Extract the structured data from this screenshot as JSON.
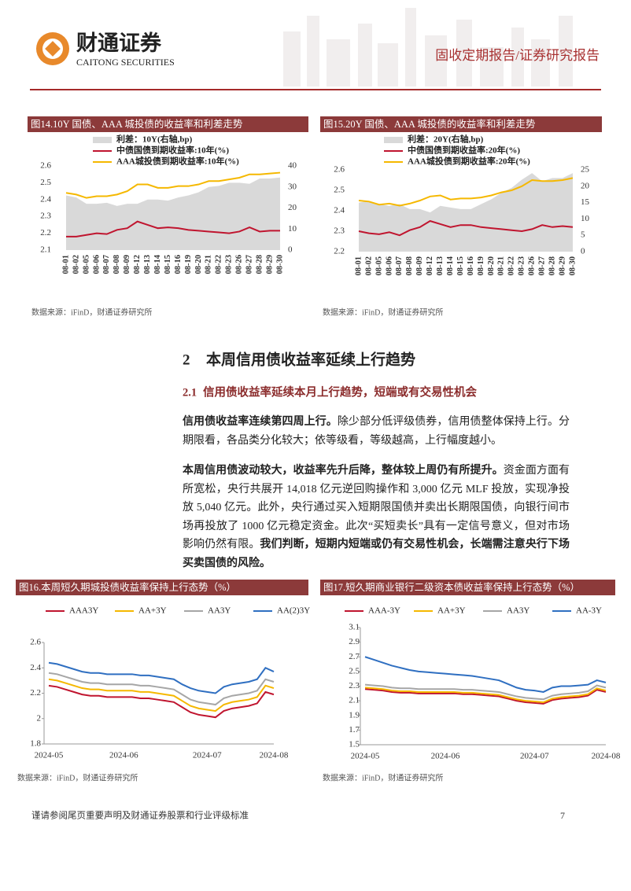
{
  "header": {
    "logo_cn": "财通证券",
    "logo_en": "CAITONG SECURITIES",
    "report_type": "固收定期报告/证券研究报告"
  },
  "section": {
    "number": "2",
    "title": "本周信用债收益率延续上行趋势"
  },
  "subsection": {
    "number": "2.1",
    "title": "信用债收益率延续本月上行趋势，短端或有交易性机会"
  },
  "paragraphs": [
    {
      "bold": "信用债收益率连续第四周上行。",
      "text": "除少部分低评级债券，信用债整体保持上行。分期限看，各品类分化较大；依等级看，等级越高，上行幅度越小。"
    },
    {
      "bold": "本周信用债波动较大，收益率先升后降，整体较上周仍有所提升。",
      "text": "资金面方面有所宽松，央行共展开 14,018 亿元逆回购操作和 3,000 亿元 MLF 投放，实现净投放 5,040 亿元。此外，央行通过买入短期限国债并卖出长期限国债，向银行间市场再投放了 1000 亿元稳定资金。此次“买短卖长”具有一定信号意义，但对市场影响仍然有限。",
      "bold_end": "我们判断，短期内短端或仍有交易性机会，长端需注意央行下场买卖国债的风险。"
    }
  ],
  "footer": {
    "disclaimer": "谨请参阅尾页重要声明及财通证券股票和行业评级标准",
    "page": "7"
  },
  "chart_data": [
    {
      "type": "line",
      "title": "图14.10Y 国债、AAA 城投债的收益率和利差走势",
      "source": "数据来源：iFinD，财通证券研究所",
      "categories": [
        "08-01",
        "08-02",
        "08-05",
        "08-06",
        "08-07",
        "08-08",
        "08-09",
        "08-12",
        "08-13",
        "08-14",
        "08-15",
        "08-16",
        "08-19",
        "08-20",
        "08-21",
        "08-22",
        "08-23",
        "08-26",
        "08-27",
        "08-28",
        "08-29",
        "08-30"
      ],
      "ylim": [
        2.1,
        2.6
      ],
      "yticks": [
        2.1,
        2.2,
        2.3,
        2.4,
        2.5,
        2.6
      ],
      "y2lim": [
        0,
        40
      ],
      "y2ticks": [
        0,
        10,
        20,
        30,
        40
      ],
      "series": [
        {
          "name": "利差：10Y(右轴,bp)",
          "type": "area",
          "axis": "y2",
          "color": "#d9d9d9",
          "values": [
            26,
            25,
            22,
            22,
            22.5,
            21,
            22,
            22,
            24,
            24,
            23.5,
            25,
            26,
            27.5,
            30,
            30.5,
            32,
            32,
            31.5,
            34,
            34,
            34.5
          ]
        },
        {
          "name": "中债国债到期收益率:10年(%)",
          "color": "#c0152f",
          "values": [
            2.18,
            2.18,
            2.19,
            2.2,
            2.195,
            2.22,
            2.23,
            2.27,
            2.25,
            2.23,
            2.235,
            2.23,
            2.22,
            2.215,
            2.21,
            2.205,
            2.2,
            2.21,
            2.235,
            2.21,
            2.215,
            2.215
          ]
        },
        {
          "name": "AAA城投债到期收益率:10年(%)",
          "color": "#f5b800",
          "values": [
            2.44,
            2.43,
            2.41,
            2.42,
            2.42,
            2.43,
            2.45,
            2.49,
            2.49,
            2.47,
            2.47,
            2.48,
            2.48,
            2.49,
            2.51,
            2.51,
            2.52,
            2.53,
            2.55,
            2.55,
            2.555,
            2.56
          ]
        }
      ]
    },
    {
      "type": "line",
      "title": "图15.20Y 国债、AAA 城投债的收益率和利差走势",
      "source": "数据来源：iFinD，财通证券研究所",
      "categories": [
        "08-01",
        "08-02",
        "08-05",
        "08-06",
        "08-07",
        "08-08",
        "08-09",
        "08-12",
        "08-13",
        "08-14",
        "08-15",
        "08-16",
        "08-19",
        "08-20",
        "08-21",
        "08-22",
        "08-23",
        "08-26",
        "08-27",
        "08-28",
        "08-29",
        "08-30"
      ],
      "ylim": [
        2.2,
        2.6
      ],
      "yticks": [
        2.2,
        2.3,
        2.4,
        2.5,
        2.6
      ],
      "y2lim": [
        0,
        25
      ],
      "y2ticks": [
        0,
        5,
        10,
        15,
        20,
        25
      ],
      "series": [
        {
          "name": "利差：20Y(右轴,bp)",
          "type": "area",
          "axis": "y2",
          "color": "#d9d9d9",
          "values": [
            15,
            15.5,
            14.5,
            14,
            14.5,
            13,
            13,
            12,
            14,
            13.5,
            13,
            13,
            14.5,
            16,
            18,
            19.5,
            22,
            24,
            21.5,
            22.5,
            22.5,
            24
          ]
        },
        {
          "name": "中债国债到期收益率:20年(%)",
          "color": "#c0152f",
          "values": [
            2.3,
            2.29,
            2.285,
            2.295,
            2.28,
            2.305,
            2.32,
            2.35,
            2.335,
            2.32,
            2.33,
            2.33,
            2.32,
            2.315,
            2.31,
            2.305,
            2.3,
            2.31,
            2.33,
            2.32,
            2.325,
            2.32
          ]
        },
        {
          "name": "AAA城投债到期收益率:20年(%)",
          "color": "#f5b800",
          "values": [
            2.45,
            2.445,
            2.43,
            2.435,
            2.425,
            2.435,
            2.45,
            2.47,
            2.475,
            2.455,
            2.46,
            2.46,
            2.465,
            2.475,
            2.49,
            2.5,
            2.52,
            2.55,
            2.545,
            2.545,
            2.55,
            2.56
          ]
        }
      ]
    },
    {
      "type": "line",
      "title": "图16.本周短久期城投债收益率保持上行态势（%）",
      "source": "数据来源：iFinD，财通证券研究所",
      "categories": [
        "2024-05",
        null,
        null,
        null,
        null,
        null,
        null,
        null,
        null,
        "2024-06",
        null,
        null,
        null,
        null,
        null,
        null,
        null,
        null,
        null,
        "2024-07",
        null,
        null,
        null,
        null,
        null,
        null,
        null,
        "2024-08"
      ],
      "ylim": [
        1.8,
        2.6
      ],
      "yticks": [
        1.8,
        2,
        2.2,
        2.4,
        2.6
      ],
      "axes": true,
      "series": [
        {
          "name": "AAA3Y",
          "color": "#c0152f",
          "values": [
            2.26,
            2.25,
            2.23,
            2.21,
            2.19,
            2.18,
            2.18,
            2.17,
            2.17,
            2.17,
            2.17,
            2.16,
            2.16,
            2.15,
            2.14,
            2.13,
            2.09,
            2.05,
            2.03,
            2.02,
            2.01,
            2.06,
            2.08,
            2.09,
            2.1,
            2.12,
            2.21,
            2.19
          ]
        },
        {
          "name": "AA+3Y",
          "color": "#f5b800",
          "values": [
            2.31,
            2.3,
            2.28,
            2.26,
            2.24,
            2.23,
            2.23,
            2.22,
            2.22,
            2.22,
            2.22,
            2.21,
            2.21,
            2.2,
            2.19,
            2.18,
            2.14,
            2.1,
            2.08,
            2.07,
            2.06,
            2.11,
            2.13,
            2.14,
            2.15,
            2.17,
            2.26,
            2.24
          ]
        },
        {
          "name": "AA3Y",
          "color": "#a6a6a6",
          "values": [
            2.36,
            2.35,
            2.33,
            2.31,
            2.29,
            2.28,
            2.28,
            2.27,
            2.27,
            2.27,
            2.27,
            2.26,
            2.26,
            2.25,
            2.24,
            2.23,
            2.19,
            2.15,
            2.13,
            2.12,
            2.11,
            2.16,
            2.18,
            2.19,
            2.2,
            2.22,
            2.31,
            2.29
          ]
        },
        {
          "name": "AA(2)3Y",
          "color": "#2f6fc1",
          "values": [
            2.44,
            2.43,
            2.41,
            2.39,
            2.37,
            2.36,
            2.36,
            2.35,
            2.35,
            2.35,
            2.35,
            2.34,
            2.34,
            2.33,
            2.32,
            2.31,
            2.27,
            2.24,
            2.22,
            2.21,
            2.2,
            2.25,
            2.27,
            2.28,
            2.29,
            2.31,
            2.4,
            2.37
          ]
        }
      ]
    },
    {
      "type": "line",
      "title": "图17.短久期商业银行二级资本债收益率保持上行态势（%）",
      "source": "数据来源：iFinD，财通证券研究所",
      "categories": [
        "2024-05",
        null,
        null,
        null,
        null,
        null,
        null,
        null,
        null,
        "2024-06",
        null,
        null,
        null,
        null,
        null,
        null,
        null,
        null,
        null,
        "2024-07",
        null,
        null,
        null,
        null,
        null,
        null,
        null,
        "2024-08"
      ],
      "ylim": [
        1.5,
        3.1
      ],
      "yticks": [
        1.5,
        1.7,
        1.9,
        2.1,
        2.3,
        2.5,
        2.7,
        2.9,
        3.1
      ],
      "axes": true,
      "series": [
        {
          "name": "AAA-3Y",
          "color": "#c0152f",
          "values": [
            2.26,
            2.25,
            2.24,
            2.22,
            2.21,
            2.21,
            2.2,
            2.2,
            2.2,
            2.2,
            2.2,
            2.19,
            2.19,
            2.18,
            2.17,
            2.16,
            2.13,
            2.1,
            2.08,
            2.07,
            2.06,
            2.11,
            2.13,
            2.14,
            2.15,
            2.17,
            2.25,
            2.22
          ]
        },
        {
          "name": "AA+3Y",
          "color": "#f5b800",
          "values": [
            2.28,
            2.27,
            2.26,
            2.24,
            2.23,
            2.23,
            2.22,
            2.22,
            2.22,
            2.22,
            2.22,
            2.21,
            2.21,
            2.2,
            2.19,
            2.18,
            2.15,
            2.12,
            2.1,
            2.09,
            2.08,
            2.13,
            2.15,
            2.16,
            2.17,
            2.19,
            2.27,
            2.24
          ]
        },
        {
          "name": "AA3Y",
          "color": "#a6a6a6",
          "values": [
            2.32,
            2.31,
            2.3,
            2.28,
            2.27,
            2.27,
            2.26,
            2.26,
            2.26,
            2.26,
            2.26,
            2.25,
            2.25,
            2.24,
            2.23,
            2.22,
            2.19,
            2.16,
            2.14,
            2.13,
            2.12,
            2.17,
            2.19,
            2.2,
            2.21,
            2.23,
            2.31,
            2.28
          ]
        },
        {
          "name": "AA-3Y",
          "color": "#2f6fc1",
          "values": [
            2.7,
            2.66,
            2.62,
            2.58,
            2.55,
            2.52,
            2.5,
            2.49,
            2.48,
            2.47,
            2.46,
            2.45,
            2.44,
            2.42,
            2.4,
            2.38,
            2.33,
            2.28,
            2.25,
            2.24,
            2.22,
            2.28,
            2.3,
            2.3,
            2.31,
            2.32,
            2.38,
            2.35
          ]
        }
      ]
    }
  ]
}
